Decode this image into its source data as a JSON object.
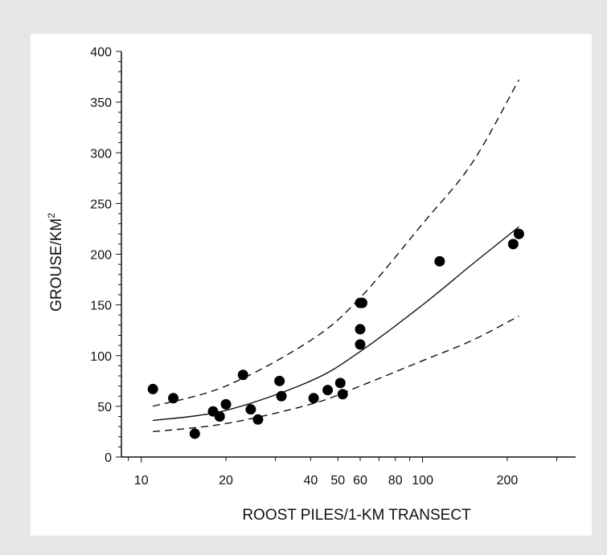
{
  "chart_data": {
    "type": "scatter",
    "title": "",
    "xlabel": "ROOST PILES/1-KM TRANSECT",
    "ylabel": "GROUSE/KM",
    "ylabel_superscript": "2",
    "x_scale": "log",
    "xlim": [
      8.5,
      350
    ],
    "ylim": [
      0,
      400
    ],
    "x_ticks": [
      10,
      20,
      40,
      50,
      60,
      80,
      100,
      200
    ],
    "y_ticks": [
      0,
      50,
      100,
      150,
      200,
      250,
      300,
      350,
      400
    ],
    "grid": false,
    "series": [
      {
        "kind": "points",
        "x": [
          11,
          13,
          15.5,
          18,
          19,
          20,
          23,
          24.5,
          26,
          31,
          31.5,
          41,
          46,
          51,
          52,
          60,
          60,
          60,
          61,
          115,
          210,
          220
        ],
        "y": [
          67,
          58,
          23,
          45,
          40,
          52,
          81,
          47,
          37,
          75,
          60,
          58,
          66,
          73,
          62,
          126,
          111,
          152,
          152,
          193,
          210,
          220
        ]
      },
      {
        "kind": "fit",
        "style": "solid",
        "x": [
          11,
          20,
          40,
          60,
          100,
          150,
          220
        ],
        "y": [
          36,
          46,
          75,
          104,
          150,
          190,
          227
        ]
      },
      {
        "kind": "upper-bound",
        "style": "dashed",
        "x": [
          11,
          20,
          40,
          60,
          100,
          150,
          220
        ],
        "y": [
          50,
          70,
          115,
          157,
          230,
          290,
          372
        ]
      },
      {
        "kind": "lower-bound",
        "style": "dashed",
        "x": [
          11,
          20,
          40,
          60,
          100,
          150,
          220
        ],
        "y": [
          25,
          33,
          52,
          70,
          95,
          115,
          139
        ]
      }
    ]
  }
}
